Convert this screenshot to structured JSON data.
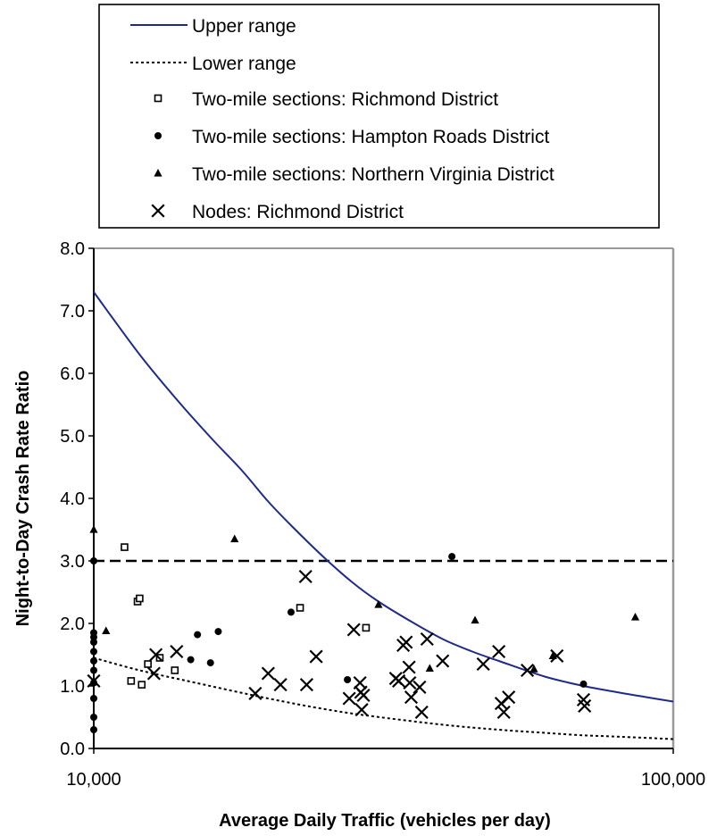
{
  "chart_data": {
    "type": "scatter",
    "title": "",
    "xlabel": "Average Daily Traffic (vehicles per day)",
    "ylabel": "Night-to-Day Crash Rate Ratio",
    "xscale": "log",
    "xlim": [
      10000,
      100000
    ],
    "ylim": [
      0.0,
      8.0
    ],
    "x_ticks": [
      10000,
      100000
    ],
    "x_tick_labels": [
      "10,000",
      "100,000"
    ],
    "y_ticks": [
      0,
      1,
      2,
      3,
      4,
      5,
      6,
      7,
      8
    ],
    "y_tick_labels": [
      "0.0",
      "1.0",
      "2.0",
      "3.0",
      "4.0",
      "5.0",
      "6.0",
      "7.0",
      "8.0"
    ],
    "grid": false,
    "legend_position": "top",
    "reference_line": {
      "y": 3.0,
      "style": "dashed",
      "color": "#000000"
    },
    "series": [
      {
        "name": "Upper range",
        "kind": "line",
        "style": "solid",
        "color": "#1f2a8a",
        "x": [
          10000,
          12000,
          14000,
          16000,
          18000,
          20000,
          22000,
          25000,
          28000,
          31000,
          35000,
          40000,
          45000,
          50000,
          60000,
          70000,
          80000,
          90000,
          100000
        ],
        "y": [
          7.3,
          6.3,
          5.55,
          4.95,
          4.45,
          3.95,
          3.55,
          3.05,
          2.65,
          2.35,
          2.05,
          1.75,
          1.55,
          1.4,
          1.15,
          1.0,
          0.9,
          0.82,
          0.75
        ]
      },
      {
        "name": "Lower range",
        "kind": "line",
        "style": "dotted",
        "color": "#000000",
        "x": [
          10000,
          12000,
          15000,
          20000,
          25000,
          30000,
          40000,
          50000,
          60000,
          70000,
          80000,
          100000
        ],
        "y": [
          1.45,
          1.25,
          1.05,
          0.8,
          0.63,
          0.52,
          0.38,
          0.3,
          0.25,
          0.21,
          0.19,
          0.15
        ]
      },
      {
        "name": "Two-mile sections: Richmond District",
        "kind": "scatter",
        "marker": "open-square",
        "color": "#000000",
        "x": [
          11300,
          11600,
          11900,
          12000,
          12100,
          12400,
          13000,
          13800,
          22700,
          29500
        ],
        "y": [
          3.22,
          1.08,
          2.35,
          2.4,
          1.02,
          1.35,
          1.45,
          1.25,
          2.25,
          1.93
        ]
      },
      {
        "name": "Two-mile sections: Hampton Roads District",
        "kind": "scatter",
        "marker": "filled-circle",
        "color": "#000000",
        "x": [
          10000,
          10000,
          10000,
          10000,
          10000,
          10000,
          10000,
          10000,
          10000,
          10000,
          10000,
          14700,
          15100,
          15900,
          16400,
          21900,
          27400,
          41500,
          70000
        ],
        "y": [
          3.0,
          1.85,
          1.78,
          1.7,
          1.55,
          1.4,
          1.25,
          1.05,
          0.8,
          0.5,
          0.3,
          1.42,
          1.82,
          1.37,
          1.87,
          2.18,
          1.1,
          3.07,
          1.03
        ]
      },
      {
        "name": "Two-mile sections: Northern Virginia District",
        "kind": "scatter",
        "marker": "filled-triangle",
        "color": "#000000",
        "x": [
          10000,
          10500,
          17500,
          31000,
          38000,
          45500,
          57500,
          62000,
          86000
        ],
        "y": [
          3.5,
          1.88,
          3.35,
          2.3,
          1.28,
          2.05,
          1.27,
          1.48,
          2.1
        ]
      },
      {
        "name": "Nodes: Richmond District",
        "kind": "scatter",
        "marker": "x",
        "color": "#000000",
        "x": [
          10000,
          12700,
          12800,
          13900,
          19000,
          20000,
          21000,
          23200,
          23300,
          24200,
          27600,
          28100,
          28800,
          28900,
          29000,
          29200,
          33200,
          33600,
          34200,
          34600,
          35000,
          35100,
          35300,
          36500,
          36800,
          37600,
          40000,
          47000,
          50000,
          50500,
          51000,
          52000,
          56000,
          63000,
          70000,
          70300
        ],
        "y": [
          1.08,
          1.2,
          1.5,
          1.55,
          0.88,
          1.2,
          1.02,
          2.75,
          1.02,
          1.47,
          0.8,
          1.9,
          1.05,
          0.9,
          0.62,
          0.85,
          1.12,
          1.08,
          1.65,
          1.7,
          1.3,
          1.05,
          0.82,
          0.98,
          0.58,
          1.75,
          1.4,
          1.35,
          1.55,
          0.72,
          0.58,
          0.82,
          1.25,
          1.48,
          0.78,
          0.68
        ]
      }
    ]
  }
}
